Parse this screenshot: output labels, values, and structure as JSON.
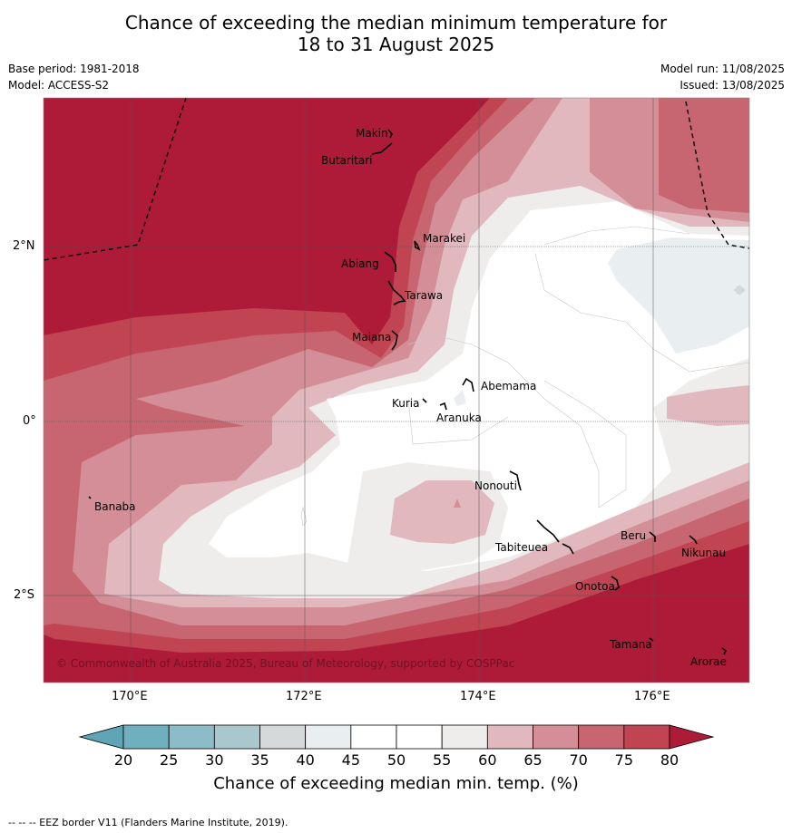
{
  "title_line1": "Chance of exceeding the median minimum temperature for",
  "title_line2": "18 to 31 August 2025",
  "base_period": "Base period: 1981-2018",
  "model": "Model: ACCESS-S2",
  "model_run": "Model run: 11/08/2025",
  "issued": "Issued: 13/08/2025",
  "lat_labels": [
    "2°N",
    "0°",
    "2°S"
  ],
  "lon_labels": [
    "170°E",
    "172°E",
    "174°E",
    "176°E"
  ],
  "places": [
    "Makin",
    "Butaritari",
    "Marakei",
    "Abiang",
    "Tarawa",
    "Maiana",
    "Abemama",
    "Kuria",
    "Aranuka",
    "Nonouti",
    "Banaba",
    "Tabiteuea",
    "Beru",
    "Nikunau",
    "Onotoa",
    "Tamana",
    "Arorae"
  ],
  "copyright": "© Commonwealth of Australia 2025, Bureau of Meteorology, supported by COSPPac",
  "colorbar": {
    "ticks": [
      "20",
      "25",
      "30",
      "35",
      "40",
      "45",
      "50",
      "55",
      "60",
      "65",
      "70",
      "75",
      "80"
    ],
    "colors": [
      "#5fa5b5",
      "#70afbe",
      "#8cbcc7",
      "#a9c8cd",
      "#d6d9da",
      "#e9eff1",
      "#ffffff",
      "#ffffff",
      "#eeedec",
      "#e0b8be",
      "#d48e97",
      "#c76670",
      "#c14452",
      "#ad1b38"
    ],
    "label": "Chance of exceeding median min. temp. (%)"
  },
  "footnote": "--  --  -- EEZ border V11 (Flanders Marine Institute, 2019)."
}
